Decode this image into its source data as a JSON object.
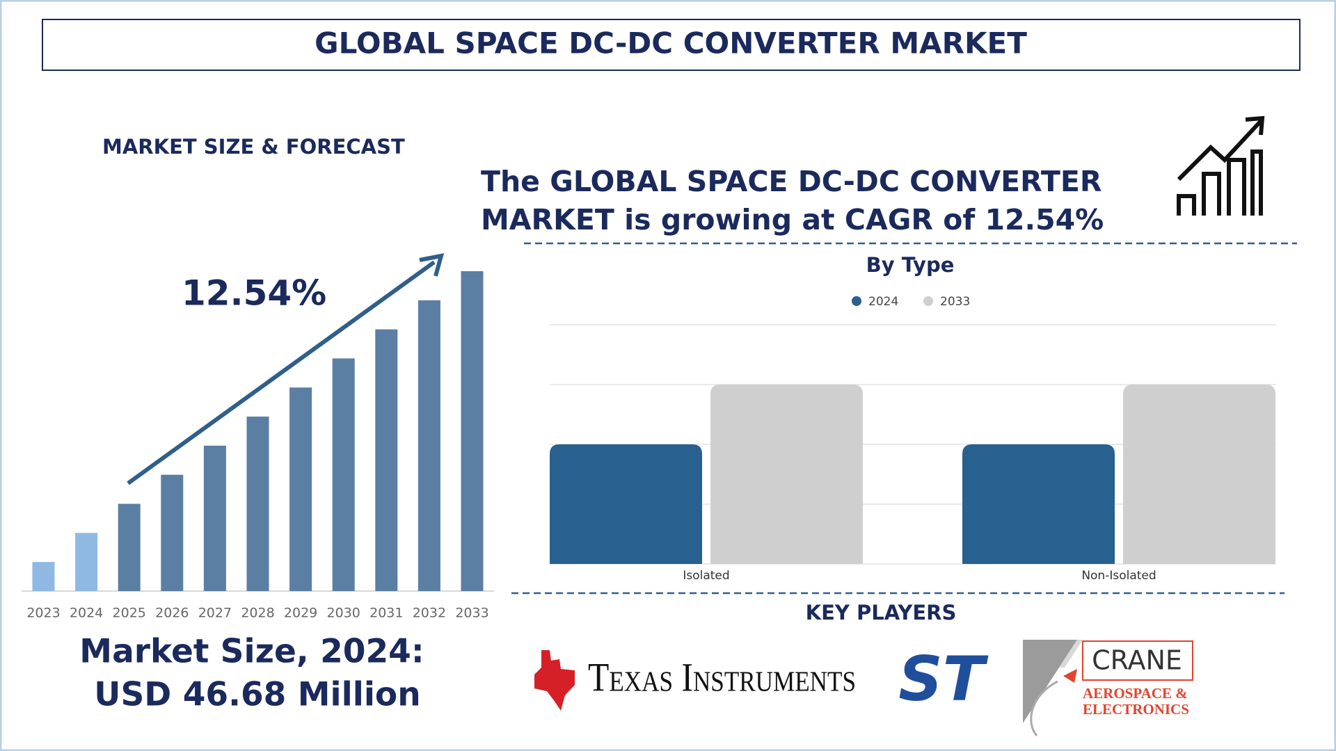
{
  "header": {
    "title": "GLOBAL SPACE DC-DC CONVERTER MARKET"
  },
  "forecast": {
    "heading": "MARKET SIZE & FORECAST",
    "cagr_label": "12.54%",
    "market_size_lines": [
      "Market Size, 2024:",
      "USD 46.68 Million"
    ]
  },
  "summary": {
    "lines": [
      "The GLOBAL SPACE DC-DC CONVERTER",
      "MARKET is growing at CAGR of 12.54%"
    ]
  },
  "chart_data": [
    {
      "type": "bar",
      "categories": [
        "2023",
        "2024",
        "2025",
        "2026",
        "2027",
        "2028",
        "2029",
        "2030",
        "2031",
        "2032",
        "2033"
      ],
      "values": [
        1,
        2,
        3,
        4,
        5,
        6,
        7,
        8,
        9,
        10,
        11
      ],
      "colors": [
        "#8fb9e3",
        "#8fb9e3",
        "#5b7ea3",
        "#5b7ea3",
        "#5b7ea3",
        "#5b7ea3",
        "#5b7ea3",
        "#5b7ea3",
        "#5b7ea3",
        "#5b7ea3",
        "#5b7ea3"
      ],
      "ylim": [
        0,
        11
      ]
    },
    {
      "type": "grouped-bar",
      "title": "By Type",
      "categories": [
        "Isolated",
        "Non-Isolated"
      ],
      "series": [
        {
          "name": "2024",
          "color": "#28608f",
          "values": [
            2,
            2
          ]
        },
        {
          "name": "2033",
          "color": "#cfcfcf",
          "values": [
            3,
            3
          ]
        }
      ],
      "ylim": [
        0,
        4
      ],
      "yticks": [
        0,
        1,
        2,
        3,
        4
      ],
      "grid": true,
      "legend": "top"
    }
  ],
  "key_players": {
    "heading": "KEY PLAYERS",
    "companies": [
      "Texas Instruments",
      "ST",
      "CRANE",
      "AEROSPACE &",
      "ELECTRONICS"
    ]
  }
}
